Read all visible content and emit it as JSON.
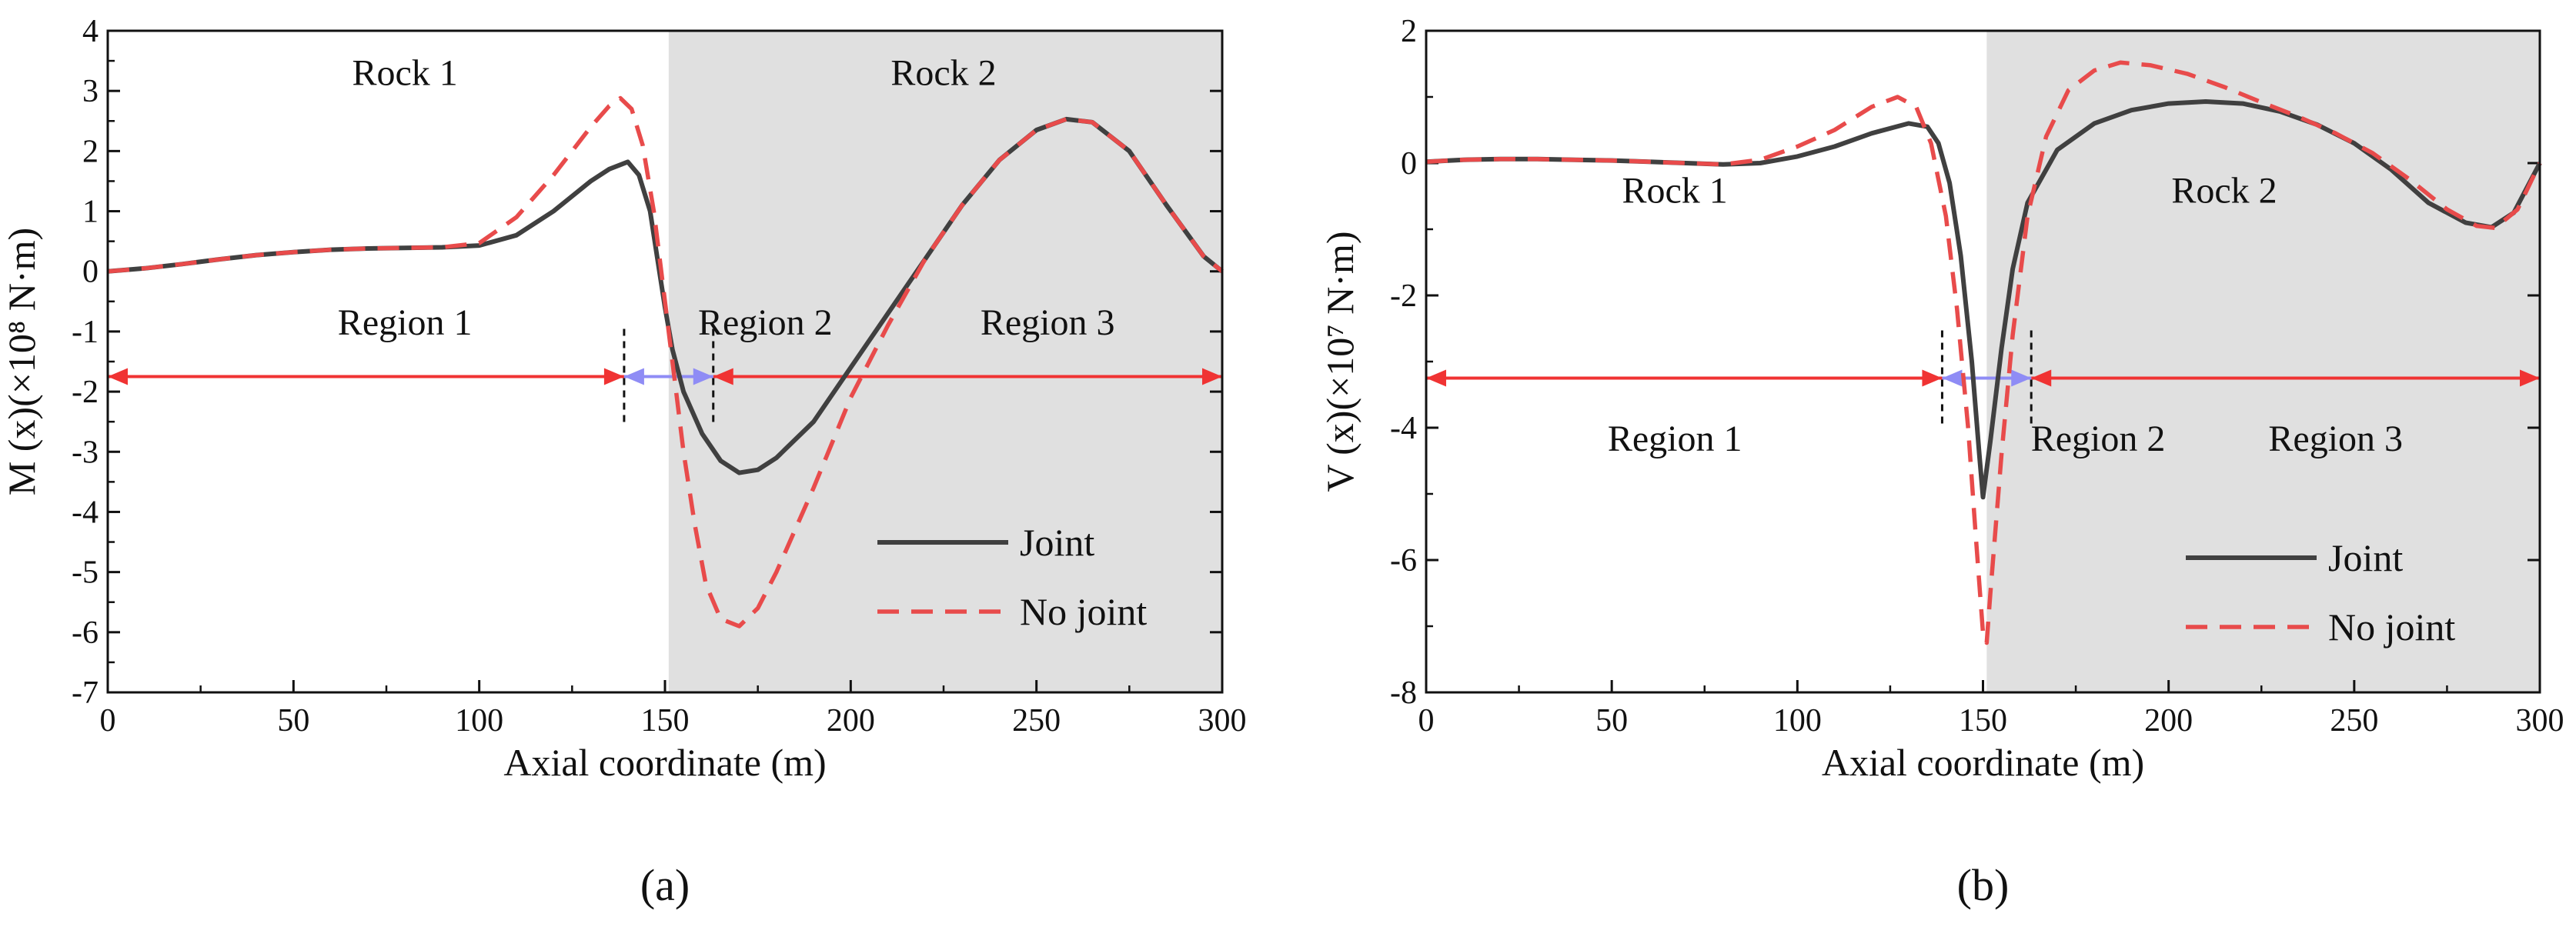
{
  "colors": {
    "joint": "#404040",
    "no_joint": "#e84b4b",
    "region_arrow_outer": "#f03333",
    "region_arrow_mid": "#8f8cf5",
    "rock2_shade": "#e0e0e0"
  },
  "chart_data": [
    {
      "type": "line",
      "panel_label": "(a)",
      "xlabel": "Axial coordinate (m)",
      "ylabel": "M (x)(×10⁸ N·m)",
      "xlim": [
        0,
        300
      ],
      "ylim": [
        -7,
        4
      ],
      "xticks": [
        0,
        50,
        100,
        150,
        200,
        250,
        300
      ],
      "yticks": [
        4,
        3,
        2,
        1,
        0,
        -1,
        -2,
        -3,
        -4,
        -5,
        -6,
        -7
      ],
      "shaded_region": {
        "x_from": 151,
        "x_to": 300,
        "label": "Rock 2"
      },
      "annotations": {
        "rock1": "Rock 1",
        "rock2": "Rock 2",
        "region1": "Region 1",
        "region2": "Region 2",
        "region3": "Region 3"
      },
      "regions": {
        "arrow_y": -1.75,
        "dash_x": [
          139,
          163
        ],
        "region1": [
          0,
          139
        ],
        "region2": [
          139,
          163
        ],
        "region3": [
          163,
          300
        ]
      },
      "legend": {
        "position": "lower-right",
        "entries": [
          "Joint",
          "No joint"
        ]
      },
      "series": [
        {
          "name": "Joint",
          "style": "solid",
          "points": [
            [
              0,
              0
            ],
            [
              10,
              0.05
            ],
            [
              20,
              0.12
            ],
            [
              30,
              0.2
            ],
            [
              40,
              0.27
            ],
            [
              50,
              0.32
            ],
            [
              60,
              0.36
            ],
            [
              70,
              0.38
            ],
            [
              80,
              0.39
            ],
            [
              90,
              0.4
            ],
            [
              100,
              0.43
            ],
            [
              110,
              0.6
            ],
            [
              120,
              1.0
            ],
            [
              130,
              1.5
            ],
            [
              135,
              1.7
            ],
            [
              140,
              1.82
            ],
            [
              143,
              1.6
            ],
            [
              146,
              1.0
            ],
            [
              148,
              0.2
            ],
            [
              150,
              -0.6
            ],
            [
              152,
              -1.3
            ],
            [
              155,
              -2.0
            ],
            [
              160,
              -2.7
            ],
            [
              165,
              -3.15
            ],
            [
              170,
              -3.35
            ],
            [
              175,
              -3.3
            ],
            [
              180,
              -3.1
            ],
            [
              190,
              -2.5
            ],
            [
              200,
              -1.6
            ],
            [
              210,
              -0.7
            ],
            [
              220,
              0.2
            ],
            [
              230,
              1.1
            ],
            [
              240,
              1.85
            ],
            [
              250,
              2.35
            ],
            [
              258,
              2.53
            ],
            [
              265,
              2.48
            ],
            [
              275,
              2.0
            ],
            [
              285,
              1.1
            ],
            [
              295,
              0.25
            ],
            [
              300,
              0.0
            ]
          ]
        },
        {
          "name": "No joint",
          "style": "dashed",
          "points": [
            [
              0,
              0
            ],
            [
              10,
              0.05
            ],
            [
              20,
              0.12
            ],
            [
              30,
              0.2
            ],
            [
              40,
              0.27
            ],
            [
              50,
              0.32
            ],
            [
              60,
              0.36
            ],
            [
              70,
              0.38
            ],
            [
              80,
              0.39
            ],
            [
              90,
              0.4
            ],
            [
              100,
              0.47
            ],
            [
              110,
              0.9
            ],
            [
              120,
              1.6
            ],
            [
              130,
              2.4
            ],
            [
              135,
              2.75
            ],
            [
              138,
              2.88
            ],
            [
              141,
              2.7
            ],
            [
              144,
              2.1
            ],
            [
              147,
              1.0
            ],
            [
              149,
              0.0
            ],
            [
              151,
              -1.0
            ],
            [
              153,
              -2.0
            ],
            [
              155,
              -3.0
            ],
            [
              158,
              -4.2
            ],
            [
              161,
              -5.2
            ],
            [
              165,
              -5.78
            ],
            [
              170,
              -5.9
            ],
            [
              175,
              -5.6
            ],
            [
              180,
              -5.0
            ],
            [
              190,
              -3.6
            ],
            [
              200,
              -2.1
            ],
            [
              210,
              -0.9
            ],
            [
              220,
              0.2
            ],
            [
              230,
              1.1
            ],
            [
              240,
              1.85
            ],
            [
              250,
              2.35
            ],
            [
              258,
              2.53
            ],
            [
              265,
              2.48
            ],
            [
              275,
              2.0
            ],
            [
              285,
              1.1
            ],
            [
              295,
              0.25
            ],
            [
              300,
              0.0
            ]
          ]
        }
      ]
    },
    {
      "type": "line",
      "panel_label": "(b)",
      "xlabel": "Axial coordinate (m)",
      "ylabel": "V (x)(×10⁷ N·m)",
      "xlim": [
        0,
        300
      ],
      "ylim": [
        -8,
        2
      ],
      "xticks": [
        0,
        50,
        100,
        150,
        200,
        250,
        300
      ],
      "yticks": [
        2,
        0,
        -2,
        -4,
        -6,
        -8
      ],
      "shaded_region": {
        "x_from": 151,
        "x_to": 300,
        "label": "Rock 2"
      },
      "annotations": {
        "rock1": "Rock 1",
        "rock2": "Rock 2",
        "region1": "Region 1",
        "region2": "Region 2",
        "region3": "Region 3"
      },
      "regions": {
        "arrow_y": -3.25,
        "dash_x": [
          139,
          163
        ],
        "region1": [
          0,
          139
        ],
        "region2": [
          139,
          163
        ],
        "region3": [
          163,
          300
        ]
      },
      "legend": {
        "position": "lower-right",
        "entries": [
          "Joint",
          "No joint"
        ]
      },
      "series": [
        {
          "name": "Joint",
          "style": "solid",
          "points": [
            [
              0,
              0.02
            ],
            [
              10,
              0.05
            ],
            [
              20,
              0.06
            ],
            [
              30,
              0.06
            ],
            [
              40,
              0.05
            ],
            [
              50,
              0.04
            ],
            [
              60,
              0.02
            ],
            [
              70,
              0.0
            ],
            [
              80,
              -0.02
            ],
            [
              90,
              0.0
            ],
            [
              100,
              0.1
            ],
            [
              110,
              0.25
            ],
            [
              120,
              0.45
            ],
            [
              130,
              0.6
            ],
            [
              135,
              0.55
            ],
            [
              138,
              0.3
            ],
            [
              141,
              -0.3
            ],
            [
              144,
              -1.4
            ],
            [
              147,
              -3.0
            ],
            [
              149,
              -4.4
            ],
            [
              150,
              -5.05
            ],
            [
              152,
              -4.2
            ],
            [
              155,
              -2.8
            ],
            [
              158,
              -1.6
            ],
            [
              162,
              -0.6
            ],
            [
              170,
              0.2
            ],
            [
              180,
              0.6
            ],
            [
              190,
              0.8
            ],
            [
              200,
              0.9
            ],
            [
              210,
              0.93
            ],
            [
              220,
              0.9
            ],
            [
              230,
              0.78
            ],
            [
              240,
              0.58
            ],
            [
              250,
              0.3
            ],
            [
              260,
              -0.1
            ],
            [
              270,
              -0.6
            ],
            [
              280,
              -0.9
            ],
            [
              287,
              -0.97
            ],
            [
              293,
              -0.75
            ],
            [
              300,
              0.0
            ]
          ]
        },
        {
          "name": "No joint",
          "style": "dashed",
          "points": [
            [
              0,
              0.02
            ],
            [
              10,
              0.05
            ],
            [
              20,
              0.06
            ],
            [
              30,
              0.06
            ],
            [
              40,
              0.05
            ],
            [
              50,
              0.04
            ],
            [
              60,
              0.02
            ],
            [
              70,
              0.0
            ],
            [
              80,
              -0.02
            ],
            [
              90,
              0.05
            ],
            [
              100,
              0.25
            ],
            [
              110,
              0.5
            ],
            [
              120,
              0.85
            ],
            [
              127,
              1.0
            ],
            [
              132,
              0.85
            ],
            [
              136,
              0.3
            ],
            [
              140,
              -0.8
            ],
            [
              143,
              -2.2
            ],
            [
              146,
              -4.0
            ],
            [
              148,
              -5.6
            ],
            [
              150,
              -7.1
            ],
            [
              151,
              -7.25
            ],
            [
              152,
              -6.5
            ],
            [
              155,
              -4.4
            ],
            [
              158,
              -2.6
            ],
            [
              162,
              -0.8
            ],
            [
              167,
              0.4
            ],
            [
              173,
              1.1
            ],
            [
              180,
              1.4
            ],
            [
              187,
              1.52
            ],
            [
              195,
              1.48
            ],
            [
              205,
              1.35
            ],
            [
              215,
              1.15
            ],
            [
              225,
              0.92
            ],
            [
              235,
              0.7
            ],
            [
              245,
              0.45
            ],
            [
              255,
              0.15
            ],
            [
              265,
              -0.25
            ],
            [
              275,
              -0.7
            ],
            [
              283,
              -0.95
            ],
            [
              288,
              -0.98
            ],
            [
              294,
              -0.7
            ],
            [
              300,
              0.0
            ]
          ]
        }
      ]
    }
  ]
}
